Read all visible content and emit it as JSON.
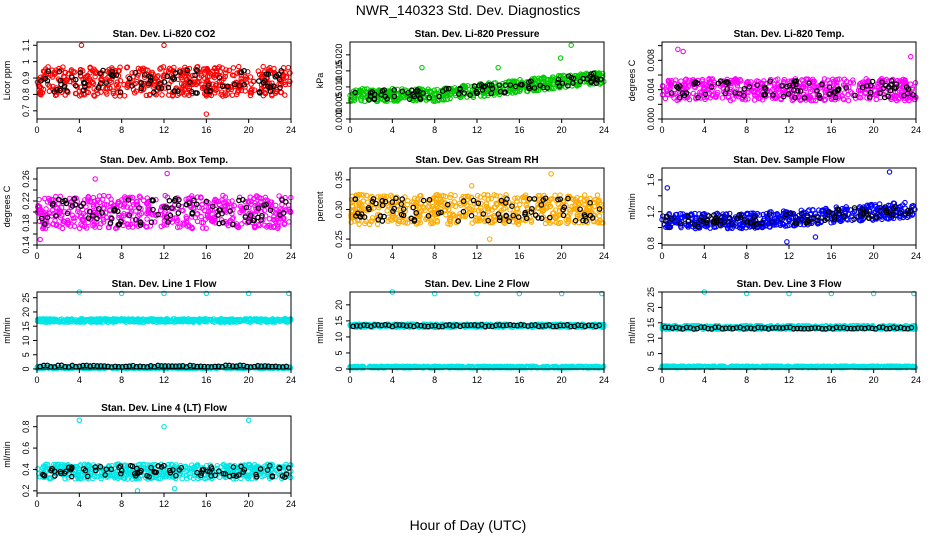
{
  "figure": {
    "title": "NWR_140323  Std. Dev. Diagnostics",
    "xlabel": "Hour of Day (UTC)"
  },
  "colors": {
    "co2": "#ff0000",
    "pressure": "#00cc00",
    "temp": "#ff00ff",
    "rh": "#ffaa00",
    "sample": "#0000ff",
    "line": "#00e5e5",
    "mean": "#000000"
  },
  "chart_data": [
    {
      "type": "scatter",
      "title": "Stan. Dev. Li-820 CO2",
      "ylabel": "Licor ppm",
      "xlim": [
        0,
        24
      ],
      "ylim": [
        0.65,
        1.12
      ],
      "xticks": [
        0,
        4,
        8,
        12,
        16,
        20,
        24
      ],
      "yticks": [
        0.7,
        0.8,
        0.9,
        1.0,
        1.1
      ],
      "ytick_labels": [
        "0.7",
        "0.8",
        "0.9",
        "1",
        "1.1"
      ],
      "color_key": "co2",
      "base": 0.88,
      "spread": 0.18,
      "trend": 0,
      "outliers": [
        [
          4.2,
          1.1
        ],
        [
          12.0,
          1.1
        ],
        [
          16.0,
          0.68
        ]
      ]
    },
    {
      "type": "scatter",
      "title": "Stan. Dev. Li-820 Pressure",
      "ylabel": "kPa",
      "xlim": [
        0,
        24
      ],
      "ylim": [
        0,
        0.024
      ],
      "xticks": [
        0,
        4,
        8,
        12,
        16,
        20,
        24
      ],
      "yticks": [
        0.0,
        0.005,
        0.01,
        0.015,
        0.02
      ],
      "ytick_labels": [
        "0.000",
        "0.005",
        "0.010",
        "0.015",
        "0.020"
      ],
      "color_key": "pressure",
      "base": 0.0075,
      "spread": 0.004,
      "trend": 0.0055,
      "outliers": [
        [
          20.9,
          0.023
        ],
        [
          19.9,
          0.019
        ],
        [
          6.8,
          0.016
        ],
        [
          14.0,
          0.016
        ]
      ]
    },
    {
      "type": "scatter",
      "title": "Stan. Dev. Li-820 Temp.",
      "ylabel": "degrees C",
      "xlim": [
        0,
        24
      ],
      "ylim": [
        0,
        0.0105
      ],
      "xticks": [
        0,
        4,
        8,
        12,
        16,
        20,
        24
      ],
      "yticks": [
        0.0,
        0.002,
        0.004,
        0.006,
        0.008,
        0.01
      ],
      "ytick_labels": [
        "0.000",
        "",
        "0.004",
        "",
        "0.008",
        ""
      ],
      "color_key": "temp",
      "base": 0.004,
      "spread": 0.003,
      "trend": 0,
      "outliers": [
        [
          1.5,
          0.0095
        ],
        [
          2.0,
          0.0092
        ],
        [
          23.5,
          0.0085
        ]
      ]
    },
    {
      "type": "scatter",
      "title": "Stan. Dev. Amb. Box Temp.",
      "ylabel": "degrees C",
      "xlim": [
        0,
        24
      ],
      "ylim": [
        0.14,
        0.28
      ],
      "xticks": [
        0,
        4,
        8,
        12,
        16,
        20,
        24
      ],
      "yticks": [
        0.14,
        0.16,
        0.18,
        0.2,
        0.22,
        0.24,
        0.26
      ],
      "ytick_labels": [
        "0.14",
        "",
        "0.18",
        "",
        "0.22",
        "",
        "0.26"
      ],
      "color_key": "temp",
      "base": 0.2,
      "spread": 0.06,
      "trend": 0,
      "outliers": [
        [
          5.5,
          0.26
        ],
        [
          12.3,
          0.27
        ],
        [
          0.3,
          0.15
        ]
      ]
    },
    {
      "type": "scatter",
      "title": "Stan. Dev. Gas Stream RH",
      "ylabel": "percent",
      "xlim": [
        0,
        24
      ],
      "ylim": [
        0.24,
        0.37
      ],
      "xticks": [
        0,
        4,
        8,
        12,
        16,
        20,
        24
      ],
      "yticks": [
        0.25,
        0.3,
        0.35
      ],
      "ytick_labels": [
        "0.25",
        "0.30",
        "0.35"
      ],
      "color_key": "rh",
      "base": 0.3,
      "spread": 0.05,
      "trend": 0,
      "outliers": [
        [
          19.0,
          0.36
        ],
        [
          11.5,
          0.34
        ],
        [
          13.2,
          0.25
        ]
      ]
    },
    {
      "type": "scatter",
      "title": "Stan. Dev. Sample Flow",
      "ylabel": "ml/min",
      "xlim": [
        0,
        24
      ],
      "ylim": [
        0.78,
        1.75
      ],
      "xticks": [
        0,
        4,
        8,
        12,
        16,
        20,
        24
      ],
      "yticks": [
        0.8,
        1.0,
        1.2,
        1.4,
        1.6
      ],
      "ytick_labels": [
        "0.8",
        "",
        "1.2",
        "",
        "1.6"
      ],
      "color_key": "sample",
      "base": 1.08,
      "spread": 0.2,
      "trend": 0.15,
      "outliers": [
        [
          0.5,
          1.5
        ],
        [
          21.5,
          1.7
        ],
        [
          11.8,
          0.82
        ],
        [
          14.5,
          0.88
        ]
      ]
    },
    {
      "type": "scatter",
      "title": "Stan. Dev. Line 1 Flow",
      "ylabel": "ml/min",
      "xlim": [
        0,
        24
      ],
      "ylim": [
        0,
        27
      ],
      "xticks": [
        0,
        4,
        8,
        12,
        16,
        20,
        24
      ],
      "yticks": [
        0,
        5,
        10,
        15,
        20,
        25
      ],
      "ytick_labels": [
        "0",
        "5",
        "10",
        "15",
        "20",
        "25"
      ],
      "color_key": "line",
      "bands": [
        {
          "level": 17,
          "spread": 1.2,
          "color_key": "line"
        },
        {
          "level": 0.5,
          "spread": 0.6,
          "color_key": "line"
        }
      ],
      "mean_level": 1.0,
      "outliers": [
        [
          4,
          27
        ],
        [
          8,
          26.5
        ],
        [
          12,
          26.5
        ],
        [
          16,
          26.5
        ],
        [
          20,
          26.5
        ],
        [
          23.8,
          26.5
        ]
      ]
    },
    {
      "type": "scatter",
      "title": "Stan. Dev. Line 2 Flow",
      "ylabel": "ml/min",
      "xlim": [
        0,
        24
      ],
      "ylim": [
        0,
        24
      ],
      "xticks": [
        0,
        4,
        8,
        12,
        16,
        20,
        24
      ],
      "yticks": [
        0,
        5,
        10,
        15,
        20
      ],
      "ytick_labels": [
        "0",
        "5",
        "10",
        "15",
        "20"
      ],
      "color_key": "line",
      "bands": [
        {
          "level": 13.5,
          "spread": 1.0,
          "color_key": "line"
        },
        {
          "level": 0.6,
          "spread": 0.5,
          "color_key": "line"
        }
      ],
      "mean_level": 13.5,
      "outliers": [
        [
          4,
          24
        ],
        [
          8,
          23.5
        ],
        [
          12,
          23.5
        ],
        [
          16,
          23.5
        ],
        [
          20,
          23.5
        ],
        [
          23.8,
          23.5
        ]
      ]
    },
    {
      "type": "scatter",
      "title": "Stan. Dev. Line 3 Flow",
      "ylabel": "ml/min",
      "xlim": [
        0,
        24
      ],
      "ylim": [
        0,
        25
      ],
      "xticks": [
        0,
        4,
        8,
        12,
        16,
        20,
        24
      ],
      "yticks": [
        0,
        5,
        10,
        15,
        20,
        25
      ],
      "ytick_labels": [
        "0",
        "5",
        "10",
        "15",
        "20",
        "25"
      ],
      "color_key": "line",
      "bands": [
        {
          "level": 13.5,
          "spread": 1.2,
          "color_key": "line"
        },
        {
          "level": 0.7,
          "spread": 0.5,
          "color_key": "line"
        }
      ],
      "mean_level": 13.3,
      "outliers": [
        [
          4,
          25
        ],
        [
          8,
          24.5
        ],
        [
          12,
          24.5
        ],
        [
          16,
          24.5
        ],
        [
          20,
          24.5
        ],
        [
          23.8,
          24.5
        ]
      ]
    },
    {
      "type": "scatter",
      "title": "Stan. Dev. Line 4 (LT) Flow",
      "ylabel": "ml/min",
      "xlim": [
        0,
        24
      ],
      "ylim": [
        0.18,
        0.9
      ],
      "xticks": [
        0,
        4,
        8,
        12,
        16,
        20,
        24
      ],
      "yticks": [
        0.2,
        0.4,
        0.6,
        0.8
      ],
      "ytick_labels": [
        "0.2",
        "0.4",
        "0.6",
        "0.8"
      ],
      "color_key": "line",
      "base": 0.38,
      "spread": 0.14,
      "trend": 0,
      "outliers": [
        [
          4,
          0.86
        ],
        [
          20,
          0.86
        ],
        [
          12,
          0.8
        ],
        [
          9.5,
          0.2
        ],
        [
          13,
          0.22
        ]
      ]
    }
  ]
}
